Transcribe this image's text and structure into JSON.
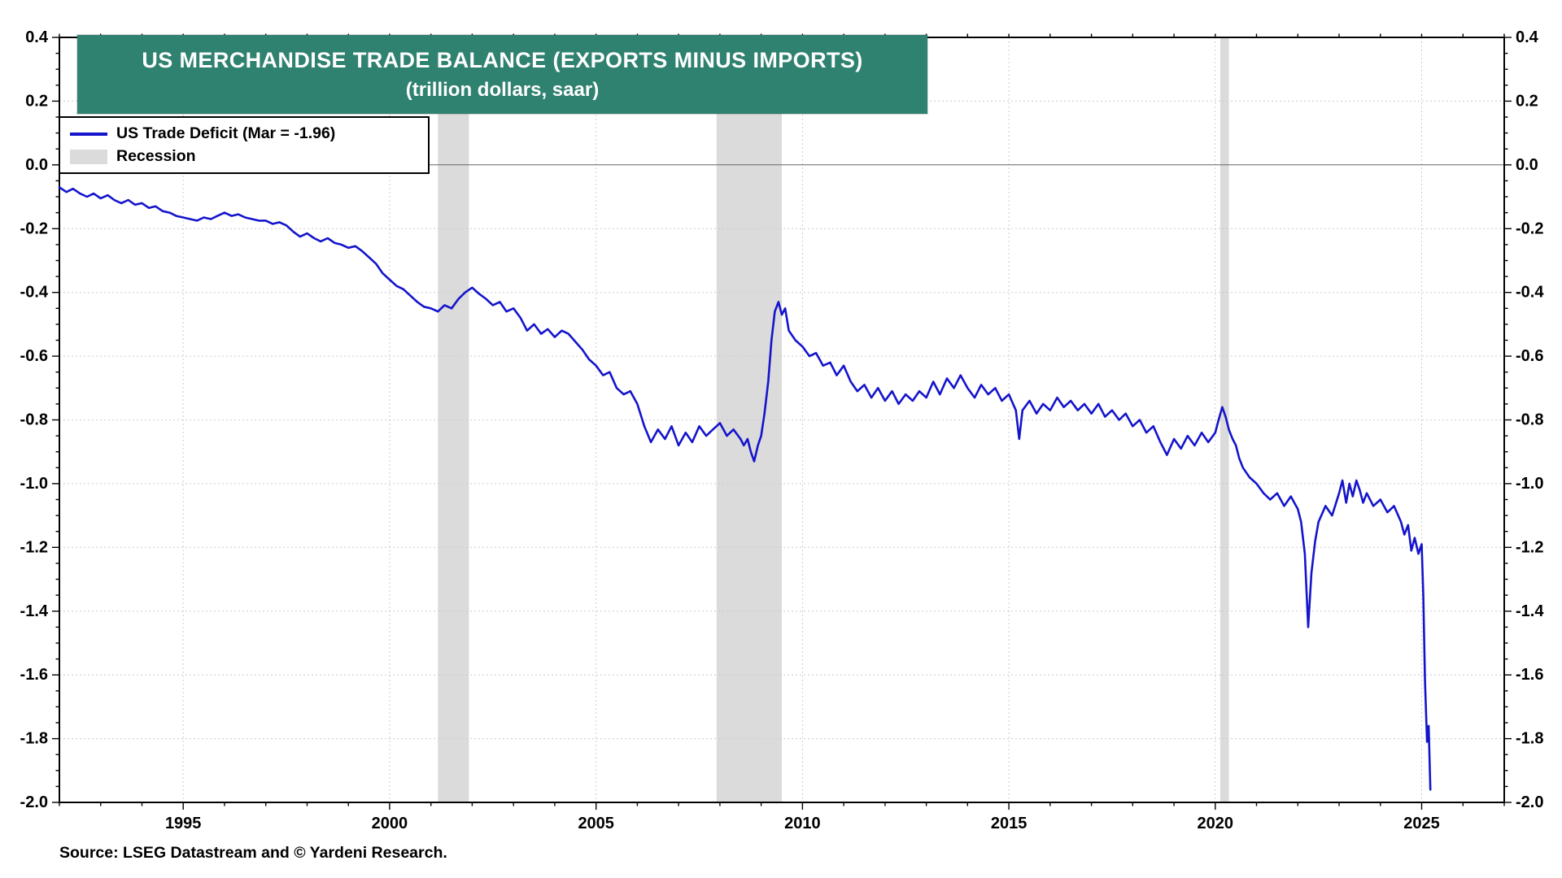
{
  "colors": {
    "banner": "#2F8170",
    "line": "#1414CC",
    "recession": "#DBDBDB",
    "grid": "#CCCCCC",
    "zero_line": "#666666",
    "axis": "#000000"
  },
  "chart_data": {
    "type": "line",
    "title": "US MERCHANDISE TRADE BALANCE (EXPORTS MINUS IMPORTS)",
    "subtitle": "(trillion dollars, saar)",
    "source": "Source: LSEG Datastream and © Yardeni Research.",
    "legend_position": "top-left",
    "grid": true,
    "xlim": [
      1992,
      2027
    ],
    "ylim": [
      -2.0,
      0.4
    ],
    "y_tick_step": 0.2,
    "y_minor_step": 0.05,
    "x_minor_step": 1,
    "x_major_ticks": [
      1995,
      2000,
      2005,
      2010,
      2015,
      2020,
      2025
    ],
    "recession_label": "Recession",
    "recessions": [
      [
        2001.17,
        2001.92
      ],
      [
        2007.92,
        2009.5
      ],
      [
        2020.12,
        2020.33
      ]
    ],
    "series": [
      {
        "name": "US Trade Deficit (Mar = -1.96)",
        "last_point_label": "Mar = -1.96",
        "points": [
          [
            1992.0,
            -0.07
          ],
          [
            1992.17,
            -0.085
          ],
          [
            1992.33,
            -0.075
          ],
          [
            1992.5,
            -0.09
          ],
          [
            1992.67,
            -0.1
          ],
          [
            1992.83,
            -0.09
          ],
          [
            1993.0,
            -0.105
          ],
          [
            1993.17,
            -0.095
          ],
          [
            1993.33,
            -0.11
          ],
          [
            1993.5,
            -0.12
          ],
          [
            1993.67,
            -0.11
          ],
          [
            1993.83,
            -0.125
          ],
          [
            1994.0,
            -0.12
          ],
          [
            1994.17,
            -0.135
          ],
          [
            1994.33,
            -0.13
          ],
          [
            1994.5,
            -0.145
          ],
          [
            1994.67,
            -0.15
          ],
          [
            1994.83,
            -0.16
          ],
          [
            1995.0,
            -0.165
          ],
          [
            1995.17,
            -0.17
          ],
          [
            1995.33,
            -0.175
          ],
          [
            1995.5,
            -0.165
          ],
          [
            1995.67,
            -0.17
          ],
          [
            1995.83,
            -0.16
          ],
          [
            1996.0,
            -0.15
          ],
          [
            1996.17,
            -0.16
          ],
          [
            1996.33,
            -0.155
          ],
          [
            1996.5,
            -0.165
          ],
          [
            1996.67,
            -0.17
          ],
          [
            1996.83,
            -0.175
          ],
          [
            1997.0,
            -0.175
          ],
          [
            1997.17,
            -0.185
          ],
          [
            1997.33,
            -0.18
          ],
          [
            1997.5,
            -0.19
          ],
          [
            1997.67,
            -0.21
          ],
          [
            1997.83,
            -0.225
          ],
          [
            1998.0,
            -0.215
          ],
          [
            1998.17,
            -0.23
          ],
          [
            1998.33,
            -0.24
          ],
          [
            1998.5,
            -0.23
          ],
          [
            1998.67,
            -0.245
          ],
          [
            1998.83,
            -0.25
          ],
          [
            1999.0,
            -0.26
          ],
          [
            1999.17,
            -0.255
          ],
          [
            1999.33,
            -0.27
          ],
          [
            1999.5,
            -0.29
          ],
          [
            1999.67,
            -0.31
          ],
          [
            1999.83,
            -0.34
          ],
          [
            2000.0,
            -0.36
          ],
          [
            2000.17,
            -0.38
          ],
          [
            2000.33,
            -0.39
          ],
          [
            2000.5,
            -0.41
          ],
          [
            2000.67,
            -0.43
          ],
          [
            2000.83,
            -0.445
          ],
          [
            2001.0,
            -0.45
          ],
          [
            2001.17,
            -0.46
          ],
          [
            2001.33,
            -0.44
          ],
          [
            2001.5,
            -0.45
          ],
          [
            2001.67,
            -0.42
          ],
          [
            2001.83,
            -0.4
          ],
          [
            2002.0,
            -0.385
          ],
          [
            2002.17,
            -0.405
          ],
          [
            2002.33,
            -0.42
          ],
          [
            2002.5,
            -0.44
          ],
          [
            2002.67,
            -0.43
          ],
          [
            2002.83,
            -0.46
          ],
          [
            2003.0,
            -0.45
          ],
          [
            2003.17,
            -0.48
          ],
          [
            2003.33,
            -0.52
          ],
          [
            2003.5,
            -0.5
          ],
          [
            2003.67,
            -0.53
          ],
          [
            2003.83,
            -0.515
          ],
          [
            2004.0,
            -0.54
          ],
          [
            2004.17,
            -0.52
          ],
          [
            2004.33,
            -0.53
          ],
          [
            2004.5,
            -0.555
          ],
          [
            2004.67,
            -0.58
          ],
          [
            2004.83,
            -0.61
          ],
          [
            2005.0,
            -0.63
          ],
          [
            2005.17,
            -0.66
          ],
          [
            2005.33,
            -0.65
          ],
          [
            2005.5,
            -0.7
          ],
          [
            2005.67,
            -0.72
          ],
          [
            2005.83,
            -0.71
          ],
          [
            2006.0,
            -0.75
          ],
          [
            2006.17,
            -0.82
          ],
          [
            2006.33,
            -0.87
          ],
          [
            2006.5,
            -0.83
          ],
          [
            2006.67,
            -0.86
          ],
          [
            2006.83,
            -0.82
          ],
          [
            2007.0,
            -0.88
          ],
          [
            2007.17,
            -0.84
          ],
          [
            2007.33,
            -0.87
          ],
          [
            2007.5,
            -0.82
          ],
          [
            2007.67,
            -0.85
          ],
          [
            2007.83,
            -0.83
          ],
          [
            2008.0,
            -0.81
          ],
          [
            2008.17,
            -0.85
          ],
          [
            2008.33,
            -0.83
          ],
          [
            2008.5,
            -0.86
          ],
          [
            2008.58,
            -0.88
          ],
          [
            2008.67,
            -0.86
          ],
          [
            2008.75,
            -0.9
          ],
          [
            2008.83,
            -0.93
          ],
          [
            2008.92,
            -0.88
          ],
          [
            2009.0,
            -0.85
          ],
          [
            2009.08,
            -0.78
          ],
          [
            2009.17,
            -0.68
          ],
          [
            2009.25,
            -0.55
          ],
          [
            2009.33,
            -0.46
          ],
          [
            2009.42,
            -0.43
          ],
          [
            2009.5,
            -0.47
          ],
          [
            2009.58,
            -0.45
          ],
          [
            2009.67,
            -0.52
          ],
          [
            2009.83,
            -0.55
          ],
          [
            2010.0,
            -0.57
          ],
          [
            2010.17,
            -0.6
          ],
          [
            2010.33,
            -0.59
          ],
          [
            2010.5,
            -0.63
          ],
          [
            2010.67,
            -0.62
          ],
          [
            2010.83,
            -0.66
          ],
          [
            2011.0,
            -0.63
          ],
          [
            2011.17,
            -0.68
          ],
          [
            2011.33,
            -0.71
          ],
          [
            2011.5,
            -0.69
          ],
          [
            2011.67,
            -0.73
          ],
          [
            2011.83,
            -0.7
          ],
          [
            2012.0,
            -0.74
          ],
          [
            2012.17,
            -0.71
          ],
          [
            2012.33,
            -0.75
          ],
          [
            2012.5,
            -0.72
          ],
          [
            2012.67,
            -0.74
          ],
          [
            2012.83,
            -0.71
          ],
          [
            2013.0,
            -0.73
          ],
          [
            2013.17,
            -0.68
          ],
          [
            2013.33,
            -0.72
          ],
          [
            2013.5,
            -0.67
          ],
          [
            2013.67,
            -0.7
          ],
          [
            2013.83,
            -0.66
          ],
          [
            2014.0,
            -0.7
          ],
          [
            2014.17,
            -0.73
          ],
          [
            2014.33,
            -0.69
          ],
          [
            2014.5,
            -0.72
          ],
          [
            2014.67,
            -0.7
          ],
          [
            2014.83,
            -0.74
          ],
          [
            2015.0,
            -0.72
          ],
          [
            2015.17,
            -0.77
          ],
          [
            2015.25,
            -0.86
          ],
          [
            2015.33,
            -0.77
          ],
          [
            2015.5,
            -0.74
          ],
          [
            2015.67,
            -0.78
          ],
          [
            2015.83,
            -0.75
          ],
          [
            2016.0,
            -0.77
          ],
          [
            2016.17,
            -0.73
          ],
          [
            2016.33,
            -0.76
          ],
          [
            2016.5,
            -0.74
          ],
          [
            2016.67,
            -0.77
          ],
          [
            2016.83,
            -0.75
          ],
          [
            2017.0,
            -0.78
          ],
          [
            2017.17,
            -0.75
          ],
          [
            2017.33,
            -0.79
          ],
          [
            2017.5,
            -0.77
          ],
          [
            2017.67,
            -0.8
          ],
          [
            2017.83,
            -0.78
          ],
          [
            2018.0,
            -0.82
          ],
          [
            2018.17,
            -0.8
          ],
          [
            2018.33,
            -0.84
          ],
          [
            2018.5,
            -0.82
          ],
          [
            2018.67,
            -0.87
          ],
          [
            2018.83,
            -0.91
          ],
          [
            2019.0,
            -0.86
          ],
          [
            2019.17,
            -0.89
          ],
          [
            2019.33,
            -0.85
          ],
          [
            2019.5,
            -0.88
          ],
          [
            2019.67,
            -0.84
          ],
          [
            2019.83,
            -0.87
          ],
          [
            2020.0,
            -0.84
          ],
          [
            2020.08,
            -0.8
          ],
          [
            2020.17,
            -0.76
          ],
          [
            2020.25,
            -0.79
          ],
          [
            2020.33,
            -0.83
          ],
          [
            2020.42,
            -0.86
          ],
          [
            2020.5,
            -0.88
          ],
          [
            2020.58,
            -0.92
          ],
          [
            2020.67,
            -0.95
          ],
          [
            2020.83,
            -0.98
          ],
          [
            2021.0,
            -1.0
          ],
          [
            2021.17,
            -1.03
          ],
          [
            2021.33,
            -1.05
          ],
          [
            2021.5,
            -1.03
          ],
          [
            2021.67,
            -1.07
          ],
          [
            2021.83,
            -1.04
          ],
          [
            2022.0,
            -1.08
          ],
          [
            2022.08,
            -1.12
          ],
          [
            2022.17,
            -1.22
          ],
          [
            2022.25,
            -1.45
          ],
          [
            2022.33,
            -1.28
          ],
          [
            2022.42,
            -1.18
          ],
          [
            2022.5,
            -1.12
          ],
          [
            2022.67,
            -1.07
          ],
          [
            2022.83,
            -1.1
          ],
          [
            2023.0,
            -1.03
          ],
          [
            2023.08,
            -0.99
          ],
          [
            2023.17,
            -1.06
          ],
          [
            2023.25,
            -1.0
          ],
          [
            2023.33,
            -1.04
          ],
          [
            2023.42,
            -0.99
          ],
          [
            2023.5,
            -1.02
          ],
          [
            2023.58,
            -1.06
          ],
          [
            2023.67,
            -1.03
          ],
          [
            2023.83,
            -1.07
          ],
          [
            2024.0,
            -1.05
          ],
          [
            2024.17,
            -1.09
          ],
          [
            2024.33,
            -1.07
          ],
          [
            2024.5,
            -1.12
          ],
          [
            2024.58,
            -1.16
          ],
          [
            2024.67,
            -1.13
          ],
          [
            2024.75,
            -1.21
          ],
          [
            2024.83,
            -1.17
          ],
          [
            2024.92,
            -1.22
          ],
          [
            2025.0,
            -1.19
          ],
          [
            2025.04,
            -1.35
          ],
          [
            2025.08,
            -1.62
          ],
          [
            2025.13,
            -1.81
          ],
          [
            2025.17,
            -1.76
          ],
          [
            2025.21,
            -1.96
          ]
        ]
      }
    ]
  }
}
